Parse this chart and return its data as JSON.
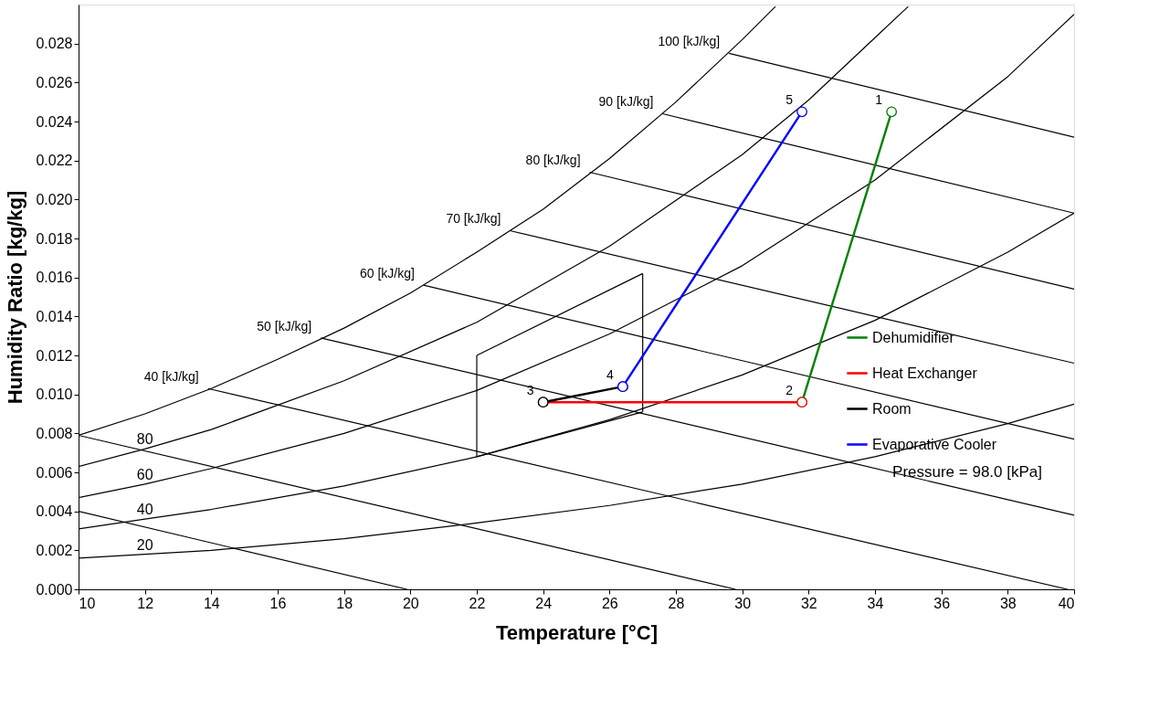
{
  "chart_data": {
    "type": "line",
    "xlabel": "Temperature [°C]",
    "ylabel": "Humidity Ratio [kg/kg]",
    "xlim": [
      10,
      40
    ],
    "ylim": [
      0,
      0.03
    ],
    "xticks": [
      10,
      12,
      14,
      16,
      18,
      20,
      22,
      24,
      26,
      28,
      30,
      32,
      34,
      36,
      38,
      40
    ],
    "yticks": [
      {
        "value": 0,
        "label": "0.000"
      },
      {
        "value": 0.002,
        "label": "0.002"
      },
      {
        "value": 0.004,
        "label": "0.004"
      },
      {
        "value": 0.006,
        "label": "0.006"
      },
      {
        "value": 0.008,
        "label": "0.008"
      },
      {
        "value": 0.01,
        "label": "0.010"
      },
      {
        "value": 0.012,
        "label": "0.012"
      },
      {
        "value": 0.014,
        "label": "0.014"
      },
      {
        "value": 0.016,
        "label": "0.016"
      },
      {
        "value": 0.018,
        "label": "0.018"
      },
      {
        "value": 0.02,
        "label": "0.020"
      },
      {
        "value": 0.022,
        "label": "0.022"
      },
      {
        "value": 0.024,
        "label": "0.024"
      },
      {
        "value": 0.026,
        "label": "0.026"
      },
      {
        "value": 0.028,
        "label": "0.028"
      }
    ],
    "grid": false,
    "legend": "right",
    "series": [
      {
        "color": "#000000",
        "x": [
          10,
          12,
          14,
          16,
          18,
          20,
          22,
          24,
          26,
          28,
          30,
          31
        ],
        "values": [
          0.0079,
          0.009,
          0.0103,
          0.0118,
          0.0134,
          0.0152,
          0.0173,
          0.0195,
          0.0221,
          0.025,
          0.0282,
          0.0299
        ]
      },
      {
        "name": "80",
        "color": "#000000",
        "x": [
          10,
          12,
          14,
          18,
          22,
          26,
          30,
          32,
          34,
          35
        ],
        "values": [
          0.0063,
          0.0072,
          0.0082,
          0.0107,
          0.0137,
          0.0176,
          0.0223,
          0.0251,
          0.0283,
          0.0299
        ]
      },
      {
        "name": "60",
        "color": "#000000",
        "x": [
          10,
          12,
          14,
          18,
          22,
          26,
          30,
          34,
          38,
          40
        ],
        "values": [
          0.0047,
          0.0054,
          0.0062,
          0.008,
          0.0102,
          0.0131,
          0.0166,
          0.021,
          0.0263,
          0.0295
        ]
      },
      {
        "name": "40",
        "color": "#000000",
        "x": [
          10,
          12,
          14,
          18,
          22,
          26,
          30,
          34,
          38,
          40
        ],
        "values": [
          0.0031,
          0.0036,
          0.0041,
          0.0053,
          0.0068,
          0.0087,
          0.011,
          0.0138,
          0.0173,
          0.0193
        ]
      },
      {
        "name": "20",
        "color": "#000000",
        "x": [
          10,
          12,
          14,
          18,
          22,
          26,
          30,
          34,
          38,
          40
        ],
        "values": [
          0.0016,
          0.0018,
          0.002,
          0.0026,
          0.0034,
          0.0043,
          0.0054,
          0.0068,
          0.0085,
          0.0095
        ]
      },
      {
        "color": "#000000",
        "x": [
          10,
          19.9
        ],
        "values": [
          0.004,
          0
        ]
      },
      {
        "color": "#000000",
        "x": [
          10,
          29.8
        ],
        "values": [
          0.0079,
          0
        ]
      },
      {
        "color": "#000000",
        "x": [
          13.9,
          39.8
        ],
        "values": [
          0.0103,
          0
        ]
      },
      {
        "color": "#000000",
        "x": [
          17.3,
          40
        ],
        "values": [
          0.0129,
          0.0038
        ]
      },
      {
        "color": "#000000",
        "x": [
          20.4,
          40
        ],
        "values": [
          0.0156,
          0.0077
        ]
      },
      {
        "color": "#000000",
        "x": [
          23.0,
          40
        ],
        "values": [
          0.0184,
          0.0116
        ]
      },
      {
        "color": "#000000",
        "x": [
          25.4,
          40
        ],
        "values": [
          0.0214,
          0.0154
        ]
      },
      {
        "color": "#000000",
        "x": [
          27.6,
          40
        ],
        "values": [
          0.0244,
          0.0193
        ]
      },
      {
        "color": "#000000",
        "x": [
          29.6,
          40
        ],
        "values": [
          0.0275,
          0.0232
        ]
      },
      {
        "color": "#000000",
        "x": [
          22,
          22
        ],
        "values": [
          0.0068,
          0.012
        ]
      },
      {
        "color": "#000000",
        "x": [
          22,
          27
        ],
        "values": [
          0.012,
          0.0162
        ]
      },
      {
        "color": "#000000",
        "x": [
          27,
          27
        ],
        "values": [
          0.0162,
          0.0091
        ]
      },
      {
        "color": "#000000",
        "x": [
          27,
          22
        ],
        "values": [
          0.0091,
          0.0068
        ]
      },
      {
        "name": "Dehumidifier",
        "color": "#008000",
        "marker": "circle",
        "x": [
          34.5,
          31.8
        ],
        "values": [
          0.0245,
          0.0096
        ]
      },
      {
        "name": "Heat Exchanger",
        "color": "#ff0000",
        "marker": "circle",
        "x": [
          31.8,
          24.0
        ],
        "values": [
          0.0096,
          0.0096
        ]
      },
      {
        "name": "Room",
        "color": "#000000",
        "marker": "circle",
        "x": [
          24.0,
          26.4
        ],
        "values": [
          0.0096,
          0.0104
        ]
      },
      {
        "name": "Evaporative Cooler",
        "color": "#0000ff",
        "marker": "circle",
        "x": [
          26.4,
          31.8
        ],
        "values": [
          0.0104,
          0.0245
        ]
      }
    ],
    "annotations": [
      {
        "text": "40 [kJ/kg]",
        "x": 13.9,
        "y": 0.0103
      },
      {
        "text": "50 [kJ/kg]",
        "x": 17.3,
        "y": 0.0129
      },
      {
        "text": "60 [kJ/kg]",
        "x": 20.4,
        "y": 0.0156
      },
      {
        "text": "70 [kJ/kg]",
        "x": 23.0,
        "y": 0.0184
      },
      {
        "text": "80 [kJ/kg]",
        "x": 25.4,
        "y": 0.0214
      },
      {
        "text": "90 [kJ/kg]",
        "x": 27.6,
        "y": 0.0244
      },
      {
        "text": "100 [kJ/kg]",
        "x": 29.6,
        "y": 0.0275
      },
      {
        "text": "1",
        "x": 34.5,
        "y": 0.0245
      },
      {
        "text": "2",
        "x": 31.8,
        "y": 0.0096
      },
      {
        "text": "3",
        "x": 24.0,
        "y": 0.0096
      },
      {
        "text": "4",
        "x": 26.4,
        "y": 0.0104
      },
      {
        "text": "5",
        "x": 31.8,
        "y": 0.0245
      },
      "Pressure = 98.0 [kPa]"
    ]
  }
}
